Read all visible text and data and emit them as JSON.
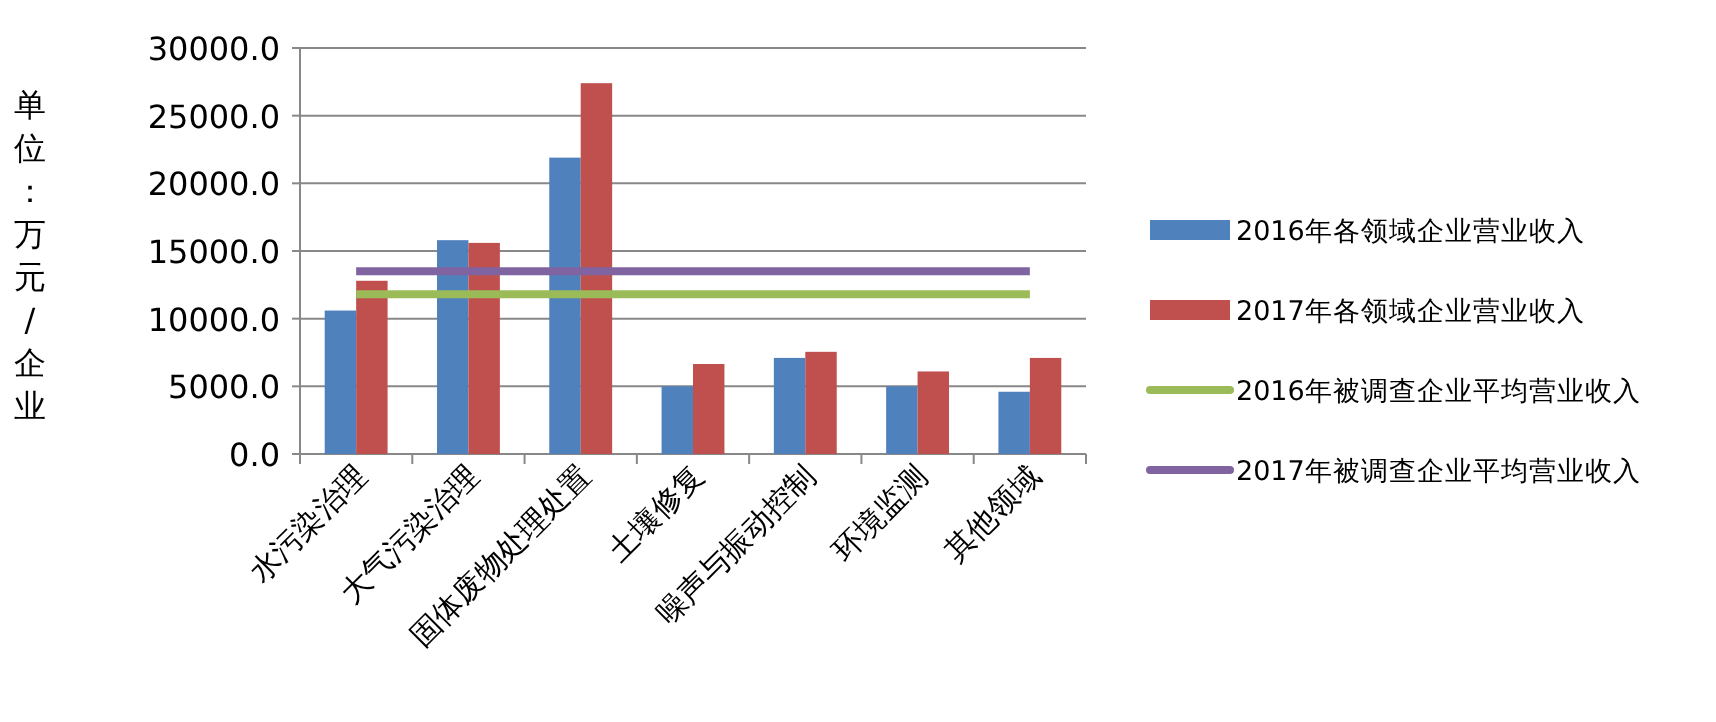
{
  "chart_data": {
    "type": "bar",
    "ylabel": "单位：万元/企业",
    "categories": [
      "水污染治理",
      "大气污染治理",
      "固体废物处理处置",
      "土壤修复",
      "噪声与振动控制",
      "环境监测",
      "其他领域"
    ],
    "series": [
      {
        "name": "2016年各领域企业营业收入",
        "color": "#4f81bd",
        "values": [
          10600,
          15800,
          21900,
          5000,
          7100,
          5000,
          4600
        ]
      },
      {
        "name": "2017年各领域企业营业收入",
        "color": "#c0504d",
        "values": [
          12800,
          15600,
          27400,
          6650,
          7550,
          6100,
          7100
        ]
      },
      {
        "name": "2016年被调查企业平均营业收入",
        "type": "line",
        "color": "#9bbb59",
        "values": [
          11800,
          11800,
          11800,
          11800,
          11800,
          11800,
          11800
        ]
      },
      {
        "name": "2017年被调查企业平均营业收入",
        "type": "line",
        "color": "#8064a2",
        "values": [
          13500,
          13500,
          13500,
          13500,
          13500,
          13500,
          13500
        ]
      }
    ],
    "ylim": [
      0,
      30000
    ],
    "yticks": [
      {
        "value": 0,
        "label": "0.0"
      },
      {
        "value": 5000,
        "label": "5000.0"
      },
      {
        "value": 10000,
        "label": "10000.0"
      },
      {
        "value": 15000,
        "label": "15000.0"
      },
      {
        "value": 20000,
        "label": "20000.0"
      },
      {
        "value": 25000,
        "label": "25000.0"
      },
      {
        "value": 30000,
        "label": "30000.0"
      }
    ],
    "grid": "y",
    "legend": "right",
    "marker": "none"
  }
}
